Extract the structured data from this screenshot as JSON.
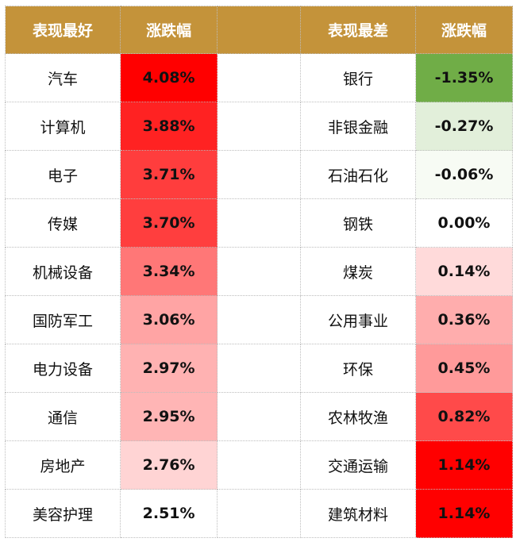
{
  "header": {
    "best_label": "表现最好",
    "change_label_left": "涨跌幅",
    "worst_label": "表现最差",
    "change_label_right": "涨跌幅"
  },
  "best": [
    {
      "name": "汽车",
      "value": "4.08%",
      "color": "#ff0000"
    },
    {
      "name": "计算机",
      "value": "3.88%",
      "color": "#ff2222"
    },
    {
      "name": "电子",
      "value": "3.71%",
      "color": "#ff3d3d"
    },
    {
      "name": "传媒",
      "value": "3.70%",
      "color": "#ff3e3e"
    },
    {
      "name": "机械设备",
      "value": "3.34%",
      "color": "#ff7777"
    },
    {
      "name": "国防军工",
      "value": "3.06%",
      "color": "#ffa4a4"
    },
    {
      "name": "电力设备",
      "value": "2.97%",
      "color": "#ffb2b2"
    },
    {
      "name": "通信",
      "value": "2.95%",
      "color": "#ffb5b5"
    },
    {
      "name": "房地产",
      "value": "2.76%",
      "color": "#ffd4d4"
    },
    {
      "name": "美容护理",
      "value": "2.51%",
      "color": "#ffffff"
    }
  ],
  "worst": [
    {
      "name": "银行",
      "value": "-1.35%",
      "color": "#70ad47"
    },
    {
      "name": "非银金融",
      "value": "-0.27%",
      "color": "#e2efda"
    },
    {
      "name": "石油石化",
      "value": "-0.06%",
      "color": "#f7fbf4"
    },
    {
      "name": "钢铁",
      "value": "0.00%",
      "color": "#ffffff"
    },
    {
      "name": "煤炭",
      "value": "0.14%",
      "color": "#ffdada"
    },
    {
      "name": "公用事业",
      "value": "0.36%",
      "color": "#ffadad"
    },
    {
      "name": "环保",
      "value": "0.45%",
      "color": "#ff9a9a"
    },
    {
      "name": "农林牧渔",
      "value": "0.82%",
      "color": "#ff4a4a"
    },
    {
      "name": "交通运输",
      "value": "1.14%",
      "color": "#ff0000"
    },
    {
      "name": "建筑材料",
      "value": "1.14%",
      "color": "#ff0000"
    }
  ]
}
